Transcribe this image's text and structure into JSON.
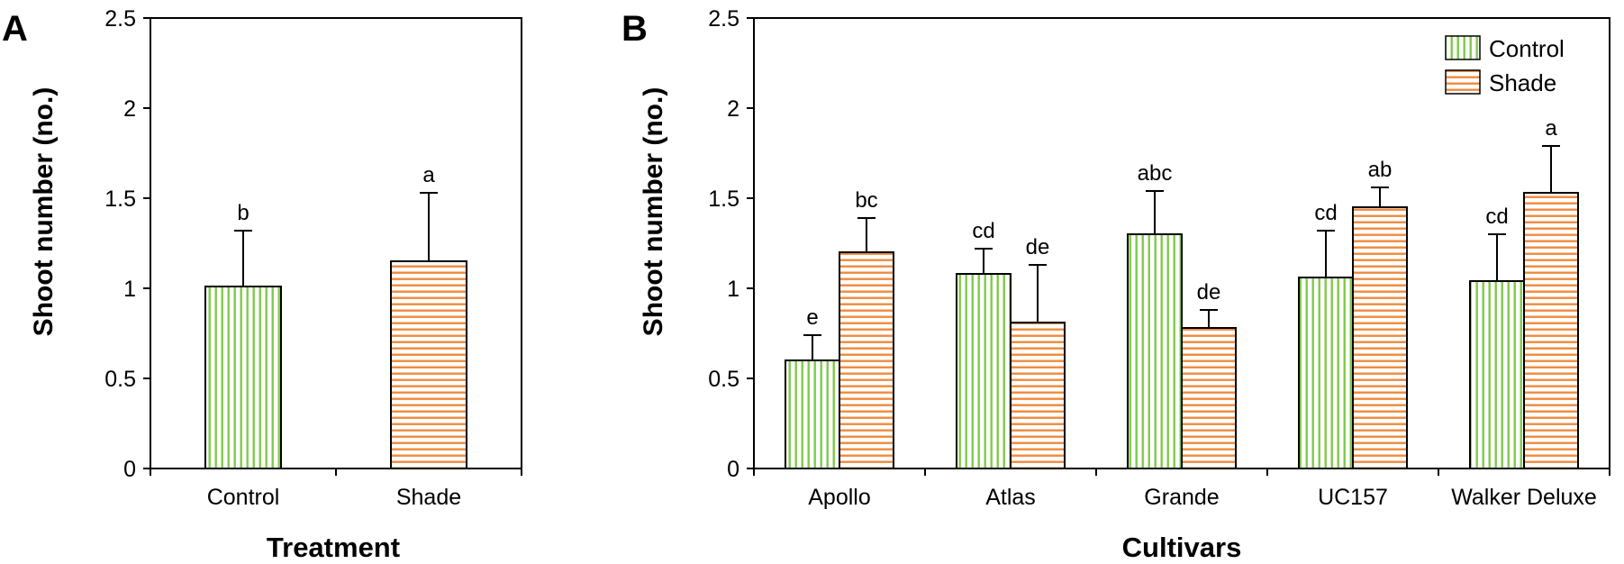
{
  "chart_data": [
    {
      "type": "bar",
      "panel": "A",
      "categories": [
        "Control",
        "Shade"
      ],
      "series": [
        {
          "name": "Control",
          "values": [
            1.01,
            null
          ],
          "errors": [
            0.31,
            null
          ],
          "letters": [
            "b",
            null
          ]
        },
        {
          "name": "Shade",
          "values": [
            null,
            1.15
          ],
          "errors": [
            null,
            0.38
          ],
          "letters": [
            null,
            "a"
          ]
        }
      ],
      "xlabel": "Treatment",
      "ylabel": "Shoot number (no.)",
      "ylim": [
        0,
        2.5
      ],
      "yticks": [
        "0",
        "0.5",
        "1",
        "1.5",
        "2",
        "2.5"
      ],
      "legend": "none"
    },
    {
      "type": "bar",
      "panel": "B",
      "categories": [
        "Apollo",
        "Atlas",
        "Grande",
        "UC157",
        "Walker Deluxe"
      ],
      "series": [
        {
          "name": "Control",
          "values": [
            0.6,
            1.08,
            1.3,
            1.06,
            1.04
          ],
          "errors": [
            0.14,
            0.14,
            0.24,
            0.26,
            0.26
          ],
          "letters": [
            "e",
            "cd",
            "abc",
            "cd",
            "cd"
          ]
        },
        {
          "name": "Shade",
          "values": [
            1.2,
            0.81,
            0.78,
            1.45,
            1.53
          ],
          "errors": [
            0.19,
            0.32,
            0.1,
            0.11,
            0.26
          ],
          "letters": [
            "bc",
            "de",
            "de",
            "ab",
            "a"
          ]
        }
      ],
      "xlabel": "Cultivars",
      "ylabel": "Shoot number (no.)",
      "ylim": [
        0,
        2.5
      ],
      "yticks": [
        "0",
        "0.5",
        "1",
        "1.5",
        "2",
        "2.5"
      ],
      "legend": "top-right"
    }
  ],
  "colors": {
    "control": "#7ec94a",
    "shade": "#ef8a3c"
  }
}
